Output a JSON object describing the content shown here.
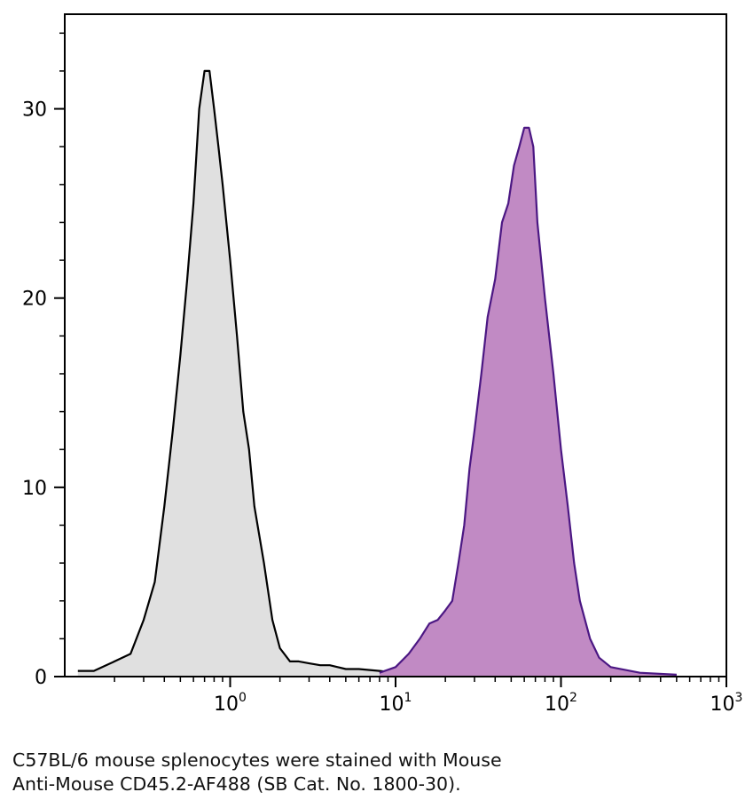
{
  "chart_data": {
    "type": "area",
    "title": "",
    "xlabel": "",
    "ylabel": "",
    "x_scale": "log",
    "xlim": [
      0.1,
      1000
    ],
    "ylim": [
      0,
      35
    ],
    "grid": false,
    "x_ticks": [
      {
        "value": 1,
        "base": "10",
        "exp": "0"
      },
      {
        "value": 10,
        "base": "10",
        "exp": "1"
      },
      {
        "value": 100,
        "base": "10",
        "exp": "2"
      },
      {
        "value": 1000,
        "base": "10",
        "exp": "3"
      }
    ],
    "y_ticks": [
      {
        "value": 0,
        "label": "0"
      },
      {
        "value": 10,
        "label": "10"
      },
      {
        "value": 20,
        "label": "20"
      },
      {
        "value": 30,
        "label": "30"
      }
    ],
    "series": [
      {
        "color": "#000000",
        "fill": "#e0e0e0",
        "points": [
          [
            0.12,
            0.3
          ],
          [
            0.15,
            0.3
          ],
          [
            0.2,
            0.8
          ],
          [
            0.25,
            1.2
          ],
          [
            0.3,
            3
          ],
          [
            0.35,
            5
          ],
          [
            0.4,
            9
          ],
          [
            0.45,
            13
          ],
          [
            0.5,
            17
          ],
          [
            0.55,
            21
          ],
          [
            0.6,
            25
          ],
          [
            0.65,
            30
          ],
          [
            0.7,
            32
          ],
          [
            0.75,
            32
          ],
          [
            0.8,
            30
          ],
          [
            0.85,
            28
          ],
          [
            0.9,
            26
          ],
          [
            1.0,
            22
          ],
          [
            1.1,
            18
          ],
          [
            1.2,
            14
          ],
          [
            1.3,
            12
          ],
          [
            1.4,
            9
          ],
          [
            1.6,
            6
          ],
          [
            1.8,
            3
          ],
          [
            2.0,
            1.5
          ],
          [
            2.3,
            0.8
          ],
          [
            2.6,
            0.8
          ],
          [
            3.0,
            0.7
          ],
          [
            3.5,
            0.6
          ],
          [
            4.0,
            0.6
          ],
          [
            5.0,
            0.4
          ],
          [
            6.0,
            0.4
          ],
          [
            8.0,
            0.3
          ],
          [
            10.0,
            0.2
          ]
        ]
      },
      {
        "color": "#4b1783",
        "fill": "#c18ac4",
        "points": [
          [
            8.0,
            0.2
          ],
          [
            10.0,
            0.5
          ],
          [
            12.0,
            1.2
          ],
          [
            14.0,
            2
          ],
          [
            16.0,
            2.8
          ],
          [
            18.0,
            3
          ],
          [
            20.0,
            3.5
          ],
          [
            22.0,
            4
          ],
          [
            24.0,
            6
          ],
          [
            26.0,
            8
          ],
          [
            28.0,
            11
          ],
          [
            30.0,
            13
          ],
          [
            33.0,
            16
          ],
          [
            36.0,
            19
          ],
          [
            40.0,
            21
          ],
          [
            44.0,
            24
          ],
          [
            48.0,
            25
          ],
          [
            52.0,
            27
          ],
          [
            56.0,
            28
          ],
          [
            60.0,
            29
          ],
          [
            64.0,
            29
          ],
          [
            68.0,
            28
          ],
          [
            72.0,
            24
          ],
          [
            80.0,
            20
          ],
          [
            90.0,
            16
          ],
          [
            100.0,
            12
          ],
          [
            110.0,
            9
          ],
          [
            120.0,
            6
          ],
          [
            130.0,
            4
          ],
          [
            150.0,
            2
          ],
          [
            170.0,
            1
          ],
          [
            200.0,
            0.5
          ],
          [
            300.0,
            0.2
          ],
          [
            500.0,
            0.1
          ]
        ]
      }
    ]
  },
  "caption": {
    "line1": "C57BL/6 mouse splenocytes were stained with Mouse",
    "line2": "Anti-Mouse CD45.2-AF488 (SB Cat. No. 1800-30)."
  }
}
